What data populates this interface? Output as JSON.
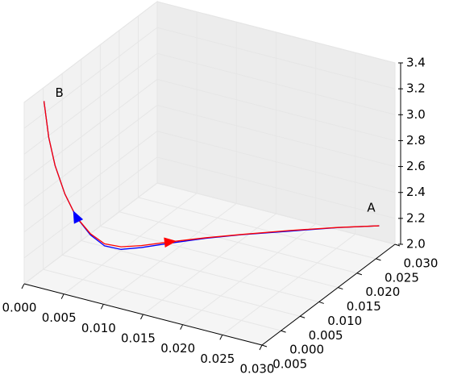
{
  "chart_data": {
    "type": "line3d",
    "xlim": [
      0,
      0.03
    ],
    "xticks": [
      {
        "value": 0,
        "label": "0.000"
      },
      {
        "value": 0.005,
        "label": "0.005"
      },
      {
        "value": 0.01,
        "label": "0.010"
      },
      {
        "value": 0.015,
        "label": "0.015"
      },
      {
        "value": 0.02,
        "label": "0.020"
      },
      {
        "value": 0.025,
        "label": "0.025"
      },
      {
        "value": 0.03,
        "label": "0.030"
      }
    ],
    "ylim": [
      -0.005,
      0.03
    ],
    "yticks": [
      {
        "value": -0.005,
        "label": "-0.005"
      },
      {
        "value": 0,
        "label": "0.000"
      },
      {
        "value": 0.005,
        "label": "0.005"
      },
      {
        "value": 0.01,
        "label": "0.010"
      },
      {
        "value": 0.015,
        "label": "0.015"
      },
      {
        "value": 0.02,
        "label": "0.020"
      },
      {
        "value": 0.025,
        "label": "0.025"
      },
      {
        "value": 0.03,
        "label": "0.030"
      }
    ],
    "zlim": [
      2.0,
      3.4
    ],
    "zticks": [
      {
        "value": 2.0,
        "label": "2.0"
      },
      {
        "value": 2.2,
        "label": "2.2"
      },
      {
        "value": 2.4,
        "label": "2.4"
      },
      {
        "value": 2.6,
        "label": "2.6"
      },
      {
        "value": 2.8,
        "label": "2.8"
      },
      {
        "value": 3.0,
        "label": "3.0"
      },
      {
        "value": 3.2,
        "label": "3.2"
      },
      {
        "value": 3.4,
        "label": "3.4"
      }
    ],
    "grid": true,
    "start_label": "A",
    "end_label": "B",
    "series": [
      {
        "color": "#0000ff",
        "x": [
          0.0304,
          0.0267,
          0.0225,
          0.0183,
          0.0152,
          0.0121,
          0.0095,
          0.0079,
          0.0063,
          0.005,
          0.0037,
          0.0025,
          0.0014,
          0.0007,
          0.0001
        ],
        "y": [
          0.025,
          0.022,
          0.018,
          0.014,
          0.011,
          0.008,
          0.006,
          0.004,
          0.003,
          0.002,
          0.001,
          0.0005,
          0.0002,
          0,
          0
        ],
        "z": [
          2.26,
          2.255,
          2.25,
          2.245,
          2.235,
          2.215,
          2.185,
          2.19,
          2.215,
          2.3,
          2.44,
          2.61,
          2.82,
          3.03,
          3.3
        ]
      },
      {
        "color": "#ff0000",
        "x": [
          0.0304,
          0.0267,
          0.0225,
          0.0183,
          0.0152,
          0.0121,
          0.0095,
          0.0079,
          0.0063,
          0.005,
          0.0037,
          0.0025,
          0.0014,
          0.0007,
          0.0001
        ],
        "y": [
          0.025,
          0.022,
          0.018,
          0.014,
          0.011,
          0.008,
          0.006,
          0.004,
          0.003,
          0.002,
          0.001,
          0.0005,
          0.0002,
          0,
          0
        ],
        "z": [
          2.26,
          2.256,
          2.255,
          2.247,
          2.239,
          2.225,
          2.2,
          2.21,
          2.23,
          2.31,
          2.44,
          2.61,
          2.82,
          3.03,
          3.3
        ]
      }
    ]
  }
}
